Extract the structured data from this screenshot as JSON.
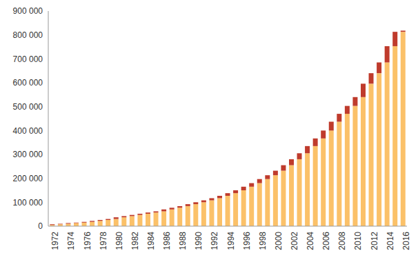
{
  "chart_data": {
    "type": "bar",
    "stacked": true,
    "grid": false,
    "categories": [
      "1972",
      null,
      "1974",
      null,
      "1976",
      null,
      "1978",
      null,
      "1980",
      null,
      "1982",
      null,
      "1984",
      null,
      "1986",
      null,
      "1988",
      null,
      "1990",
      null,
      "1992",
      null,
      "1994",
      null,
      "1996",
      null,
      "1998",
      null,
      "2000",
      null,
      "2002",
      null,
      "2004",
      null,
      "2006",
      null,
      "2008",
      null,
      "2010",
      null,
      "2012",
      null,
      "2014",
      null,
      "2016"
    ],
    "series": [
      {
        "color": "#fbc169",
        "values": [
          5000,
          8000,
          10000,
          13000,
          15000,
          18000,
          22000,
          26000,
          30000,
          37000,
          42000,
          47000,
          52000,
          57000,
          62000,
          70000,
          77000,
          84000,
          92000,
          100000,
          108000,
          117000,
          127000,
          138000,
          150000,
          165000,
          180000,
          197000,
          213000,
          232000,
          255000,
          280000,
          305000,
          335000,
          367000,
          400000,
          437000,
          470000,
          503000,
          540000,
          596000,
          640000,
          685000,
          753000,
          813000
        ]
      },
      {
        "color": "#bf3b2c",
        "values": [
          3000,
          2000,
          3000,
          2000,
          3000,
          4000,
          4000,
          4000,
          7000,
          5000,
          5000,
          5000,
          5000,
          5000,
          8000,
          7000,
          7000,
          8000,
          8000,
          8000,
          9000,
          10000,
          11000,
          12000,
          15000,
          15000,
          17000,
          16000,
          19000,
          23000,
          25000,
          25000,
          30000,
          32000,
          33000,
          37000,
          33000,
          33000,
          37000,
          56000,
          44000,
          45000,
          68000,
          60000,
          5000
        ]
      }
    ],
    "ylim": [
      0,
      900000
    ],
    "yticks": [
      0,
      {
        "value": 100000,
        "label": "100 000"
      },
      {
        "value": 200000,
        "label": "200 000"
      },
      {
        "value": 300000,
        "label": "300 000"
      },
      {
        "value": 400000,
        "label": "400 000"
      },
      {
        "value": 500000,
        "label": "500 000"
      },
      {
        "value": 600000,
        "label": "600 000"
      },
      {
        "value": 700000,
        "label": "700 000"
      },
      {
        "value": 800000,
        "label": "800 000"
      },
      {
        "value": 900000,
        "label": "900 000"
      }
    ]
  }
}
